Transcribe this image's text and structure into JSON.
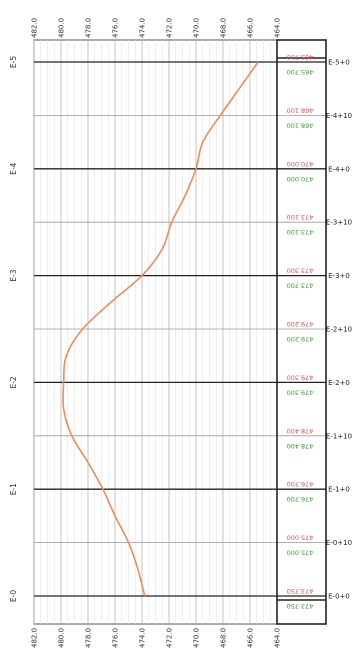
{
  "chart_data": {
    "type": "line",
    "orientation": "rotated-90",
    "elevation_ticks": [
      "482.0",
      "480.0",
      "478.0",
      "476.0",
      "474.0",
      "472.0",
      "470.0",
      "468.0",
      "466.0",
      "464.0"
    ],
    "elevation_range": [
      482.0,
      464.0
    ],
    "station_labels": [
      "E-0",
      "E-1",
      "E-2",
      "E-3",
      "E-4",
      "E-5"
    ],
    "station_range_m": [
      0,
      100
    ],
    "sections": [
      {
        "station": "E-0+0",
        "m": 0,
        "red": "473.750",
        "green": "473.750"
      },
      {
        "station": "E-0+10",
        "m": 10,
        "red": "475.000",
        "green": "475.000"
      },
      {
        "station": "E-1+0",
        "m": 20,
        "red": "476.700",
        "green": "476.700"
      },
      {
        "station": "E-1+10",
        "m": 30,
        "red": "478.400",
        "green": "478.400"
      },
      {
        "station": "E-2+0",
        "m": 40,
        "red": "479.300",
        "green": "479.300"
      },
      {
        "station": "E-2+10",
        "m": 50,
        "red": "479.200",
        "green": "479.200"
      },
      {
        "station": "E-3+0",
        "m": 60,
        "red": "473.300",
        "green": "473.700"
      },
      {
        "station": "E-3+10",
        "m": 70,
        "red": "473.100",
        "green": "473.100"
      },
      {
        "station": "E-4+0",
        "m": 80,
        "red": "470.000",
        "green": "470.000"
      },
      {
        "station": "E-4+10",
        "m": 90,
        "red": "468.100",
        "green": "468.100"
      },
      {
        "station": "E-5+0",
        "m": 100,
        "red": "465.700",
        "green": "465.700"
      }
    ],
    "profile": {
      "stations_m": [
        0,
        5,
        10,
        15,
        20,
        25,
        30,
        35,
        40,
        45,
        50,
        55,
        60,
        65,
        70,
        75,
        80,
        85,
        90,
        95,
        100
      ],
      "elevations": [
        473.8,
        474.3,
        475.0,
        476.0,
        476.9,
        478.0,
        479.2,
        479.8,
        479.8,
        479.6,
        478.4,
        476.3,
        474.0,
        472.5,
        471.8,
        470.8,
        470.0,
        469.5,
        468.2,
        466.8,
        465.4
      ]
    },
    "colors": {
      "profile": "#f08a5a",
      "red_label": "#d9534f",
      "green_label": "#3a9a3a",
      "grid": "#cfcfcf",
      "major": "#333333"
    }
  }
}
